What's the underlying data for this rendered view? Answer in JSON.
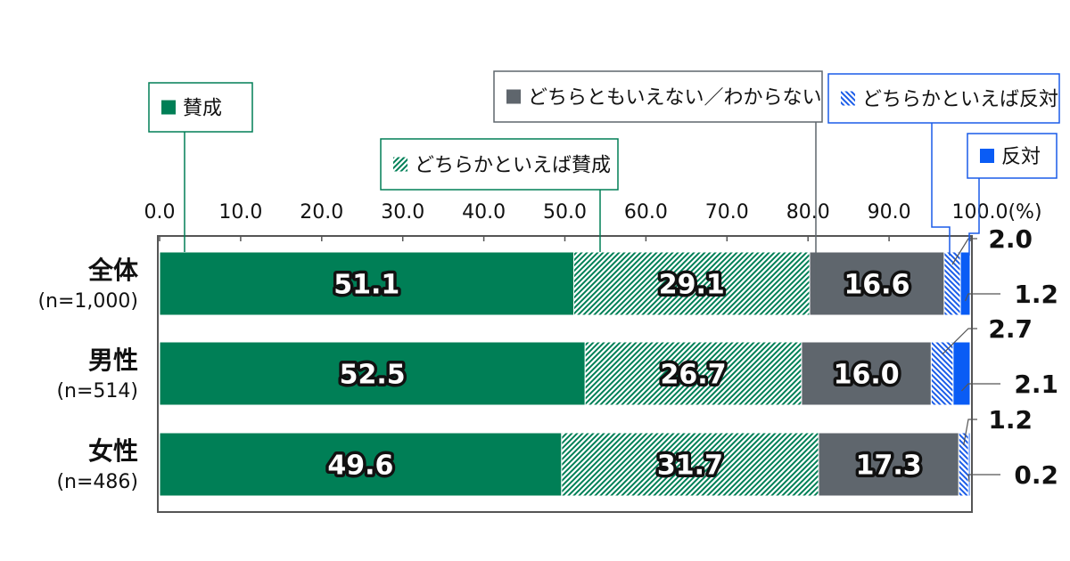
{
  "chart_data": {
    "type": "bar",
    "orientation": "horizontal",
    "stacked": true,
    "xlim": [
      0,
      100
    ],
    "xticks": [
      "0.0",
      "10.0",
      "20.0",
      "30.0",
      "40.0",
      "50.0",
      "60.0",
      "70.0",
      "80.0",
      "90.0",
      "100.0(%)"
    ],
    "categories": [
      {
        "name": "全体",
        "n": "(n=1,000)"
      },
      {
        "name": "男性",
        "n": "(n=514)"
      },
      {
        "name": "女性",
        "n": "(n=486)"
      }
    ],
    "series": [
      {
        "name": "賛成",
        "values": [
          51.1,
          52.5,
          49.6
        ],
        "labels": [
          "51.1",
          "52.5",
          "49.6"
        ],
        "color": "#007f56",
        "pattern": "solid"
      },
      {
        "name": "どちらかといえば賛成",
        "values": [
          29.1,
          26.7,
          31.7
        ],
        "labels": [
          "29.1",
          "26.7",
          "31.7"
        ],
        "color": "#007f56",
        "pattern": "hatch"
      },
      {
        "name": "どちらともいえない／わからない",
        "values": [
          16.6,
          16.0,
          17.3
        ],
        "labels": [
          "16.6",
          "16.0",
          "17.3"
        ],
        "color": "#5f666d",
        "pattern": "solid"
      },
      {
        "name": "どちらかといえば反対",
        "values": [
          2.0,
          2.7,
          1.2
        ],
        "labels": [
          "2.0",
          "2.7",
          "1.2"
        ],
        "color": "#1a5ce8",
        "pattern": "hatch"
      },
      {
        "name": "反対",
        "values": [
          1.2,
          2.1,
          0.2
        ],
        "labels": [
          "1.2",
          "2.1",
          "0.2"
        ],
        "color": "#0a5cf5",
        "pattern": "solid"
      }
    ],
    "grid": false,
    "legend": "callouts-top"
  }
}
